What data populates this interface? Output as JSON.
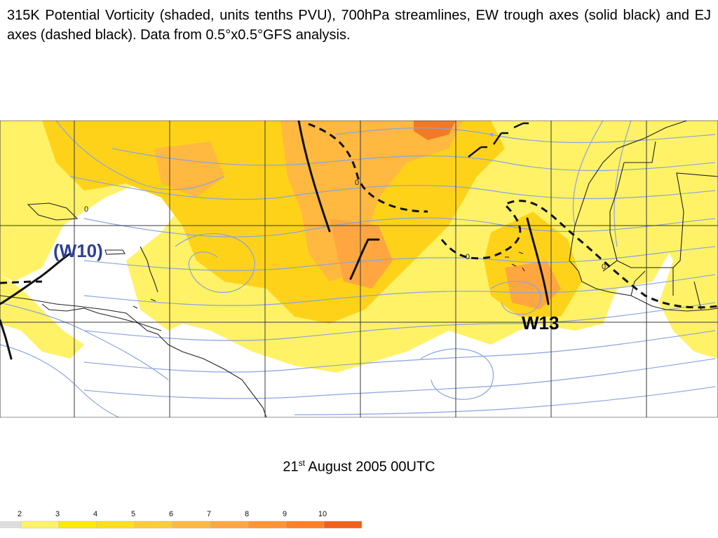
{
  "caption": "315K Potential Vorticity (shaded, units tenths PVU), 700hPa streamlines, EW trough axes (solid black) and EJ axes (dashed black). Data from 0.5°x0.5°GFS analysis.",
  "labels": {
    "w10": "(W10)",
    "w13": "W13"
  },
  "date": {
    "day": "21",
    "suffix": "st",
    "rest": " August 2005 00UTC"
  },
  "colorbar": {
    "ticks": [
      "2",
      "3",
      "4",
      "5",
      "6",
      "7",
      "8",
      "9",
      "10"
    ],
    "colors": [
      "#fff266",
      "#ffea00",
      "#ffde1a",
      "#ffcd33",
      "#ffb840",
      "#ffa640",
      "#ff9433",
      "#ff7f26",
      "#f2601a"
    ]
  },
  "colors": {
    "low_pv": "#fff266",
    "mid_pv": "#ffd21a",
    "high_pv": "#ffa640",
    "peak_pv": "#f27a26",
    "streamline": "#8aa3e0",
    "coast": "#222222",
    "grid": "#3a3a3a",
    "trough": "#111111"
  },
  "contour_labels": [
    "0",
    "0",
    "0",
    "0"
  ]
}
